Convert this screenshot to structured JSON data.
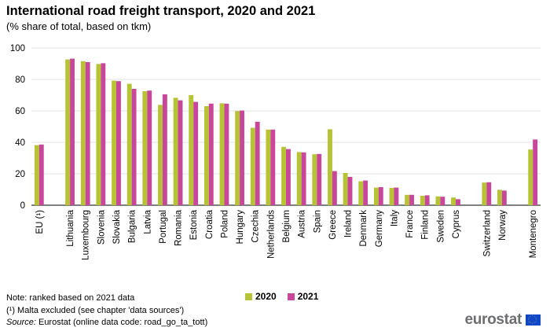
{
  "chart_data": {
    "type": "bar",
    "title": "International road freight transport, 2020 and 2021",
    "subtitle": "(% share of total, based on tkm)",
    "ylim": [
      0,
      100
    ],
    "yticks": [
      0,
      20,
      40,
      60,
      80,
      100
    ],
    "grid": true,
    "legend_position": "bottom",
    "categories": [
      "EU (¹)",
      "Lithuania",
      "Luxembourg",
      "Slovenia",
      "Slovakia",
      "Bulgaria",
      "Latvia",
      "Portugal",
      "Romania",
      "Estonia",
      "Croatia",
      "Poland",
      "Hungary",
      "Czechia",
      "Netherlands",
      "Belgium",
      "Austria",
      "Spain",
      "Greece",
      "Ireland",
      "Denmark",
      "Germany",
      "Italy",
      "France",
      "Finland",
      "Sweden",
      "Cyprus",
      "Switzerland",
      "Norway",
      "Montenegro"
    ],
    "series": [
      {
        "name": "2020",
        "color": "#b5c334",
        "values": [
          38.2,
          92.7,
          91.6,
          89.8,
          79.2,
          77.2,
          72.5,
          63.8,
          68.3,
          70.0,
          63.0,
          64.8,
          59.9,
          49.2,
          48.1,
          37.1,
          33.8,
          32.4,
          48.3,
          20.5,
          15.2,
          11.2,
          11.0,
          6.6,
          6.0,
          5.6,
          4.9,
          14.4,
          9.8,
          35.4
        ]
      },
      {
        "name": "2021",
        "color": "#c9479a",
        "values": [
          38.6,
          93.2,
          91.0,
          90.3,
          78.9,
          74.0,
          72.9,
          70.5,
          66.7,
          65.7,
          64.6,
          64.6,
          60.2,
          53.1,
          48.1,
          35.7,
          33.6,
          32.6,
          21.7,
          18.0,
          15.7,
          11.5,
          11.2,
          6.6,
          6.3,
          5.4,
          3.8,
          14.6,
          9.3,
          41.8
        ]
      }
    ]
  },
  "notes": {
    "line1": "Note: ranked based on 2021 data",
    "line2": "(¹) Malta excluded (see chapter 'data sources')",
    "source_label": "Source:",
    "source_text": " Eurostat (online data code: road_go_ta_tott)"
  },
  "logo": {
    "text": "eurostat",
    "flag_color": "#0e47cb",
    "star_color": "#ffd617"
  }
}
